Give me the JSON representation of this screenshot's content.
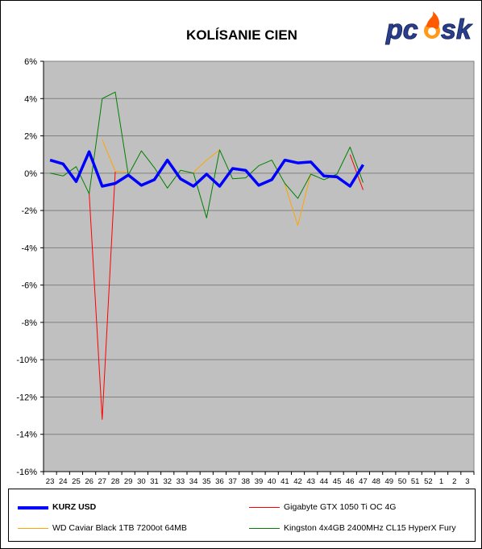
{
  "chart_data": {
    "type": "line",
    "title": "KOLÍSANIE CIEN",
    "brand": "pcosk",
    "categories": [
      "23",
      "24",
      "25",
      "26",
      "27",
      "28",
      "29",
      "30",
      "31",
      "32",
      "33",
      "34",
      "35",
      "36",
      "37",
      "38",
      "39",
      "40",
      "41",
      "42",
      "43",
      "44",
      "45",
      "46",
      "47",
      "48",
      "49",
      "50",
      "51",
      "52",
      "1",
      "2",
      "3"
    ],
    "ylim": [
      -16,
      6
    ],
    "yticks": [
      "6%",
      "4%",
      "2%",
      "0%",
      "-2%",
      "-4%",
      "-6%",
      "-8%",
      "-10%",
      "-12%",
      "-14%",
      "-16%"
    ],
    "ytick_values": [
      6,
      4,
      2,
      0,
      -2,
      -4,
      -6,
      -8,
      -10,
      -12,
      -14,
      -16
    ],
    "grid": true,
    "plot_background": "#c0c0c0",
    "series": [
      {
        "name": "KURZ USD",
        "color": "#0000ff",
        "values": [
          0.7,
          0.5,
          -0.45,
          1.15,
          -0.7,
          -0.55,
          -0.1,
          -0.65,
          -0.35,
          0.7,
          -0.3,
          -0.7,
          -0.05,
          -0.7,
          0.25,
          0.15,
          -0.65,
          -0.35,
          0.7,
          0.55,
          0.6,
          -0.15,
          -0.2,
          -0.7,
          0.45,
          null,
          null,
          null,
          null,
          null,
          null,
          null,
          null
        ]
      },
      {
        "name": "Gigabyte GTX 1050 Ti OC 4G",
        "color": "#ff0000",
        "values": [
          null,
          null,
          null,
          -1.05,
          -13.2,
          0.1,
          null,
          null,
          null,
          null,
          null,
          null,
          null,
          null,
          null,
          null,
          null,
          null,
          null,
          null,
          null,
          null,
          null,
          1.0,
          -0.9,
          null,
          null,
          null,
          null,
          null,
          null,
          null,
          null
        ]
      },
      {
        "name": "WD Caviar Black 1TB 7200ot 64MB",
        "color": "#ffa500",
        "values": [
          null,
          null,
          null,
          null,
          1.8,
          0.1,
          0.05,
          null,
          null,
          null,
          null,
          0.05,
          0.7,
          1.25,
          null,
          null,
          null,
          null,
          -0.6,
          -2.8,
          0.0,
          null,
          null,
          null,
          null,
          null,
          null,
          null,
          null,
          null,
          null,
          null,
          null
        ]
      },
      {
        "name": "Kingston 4x4GB 2400MHz CL15 HyperX Fury",
        "color": "#008000",
        "values": [
          0.0,
          -0.15,
          0.35,
          -1.1,
          4.0,
          4.35,
          -0.1,
          1.2,
          0.3,
          -0.8,
          0.15,
          0.0,
          -2.4,
          1.25,
          -0.3,
          -0.25,
          0.4,
          0.7,
          -0.55,
          -1.35,
          -0.05,
          -0.35,
          -0.05,
          1.4,
          -0.5,
          null,
          null,
          null,
          null,
          null,
          null,
          null,
          null
        ]
      }
    ]
  },
  "legend": {
    "items": [
      {
        "label": "KURZ USD",
        "color": "#0000ff",
        "width": 4
      },
      {
        "label": "Gigabyte GTX 1050 Ti OC 4G",
        "color": "#ff0000",
        "width": 1
      },
      {
        "label": "WD Caviar Black 1TB 7200ot 64MB",
        "color": "#ffa500",
        "width": 1
      },
      {
        "label": "Kingston 4x4GB 2400MHz CL15 HyperX Fury",
        "color": "#008000",
        "width": 1
      }
    ]
  }
}
